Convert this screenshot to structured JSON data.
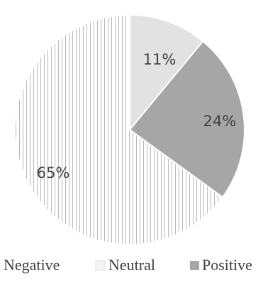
{
  "chart_data": {
    "type": "pie",
    "title": "",
    "slices": [
      {
        "label": "Neutral",
        "value": 11,
        "display": "11%",
        "color": "#e2e2e2",
        "pattern": "none"
      },
      {
        "label": "Positive",
        "value": 24,
        "display": "24%",
        "color": "#a6a6a6",
        "pattern": "none"
      },
      {
        "label": "Negative",
        "value": 65,
        "display": "65%",
        "color": "#ffffff",
        "pattern": "vertical-lines"
      }
    ],
    "legend": {
      "placement": "bottom",
      "items": [
        {
          "label": "Negative",
          "swatch": "none"
        },
        {
          "label": "Neutral",
          "swatch": "outline"
        },
        {
          "label": "Positive",
          "swatch": "filled"
        }
      ]
    },
    "start_angle": "12 o'clock",
    "direction": "clockwise"
  },
  "colors": {
    "text": "#404040",
    "slice_border": "#ffffff",
    "negative_hatch": "#b8b8b8",
    "neutral_fill": "#e2e2e2",
    "positive_fill": "#a6a6a6",
    "background": "#ffffff"
  }
}
